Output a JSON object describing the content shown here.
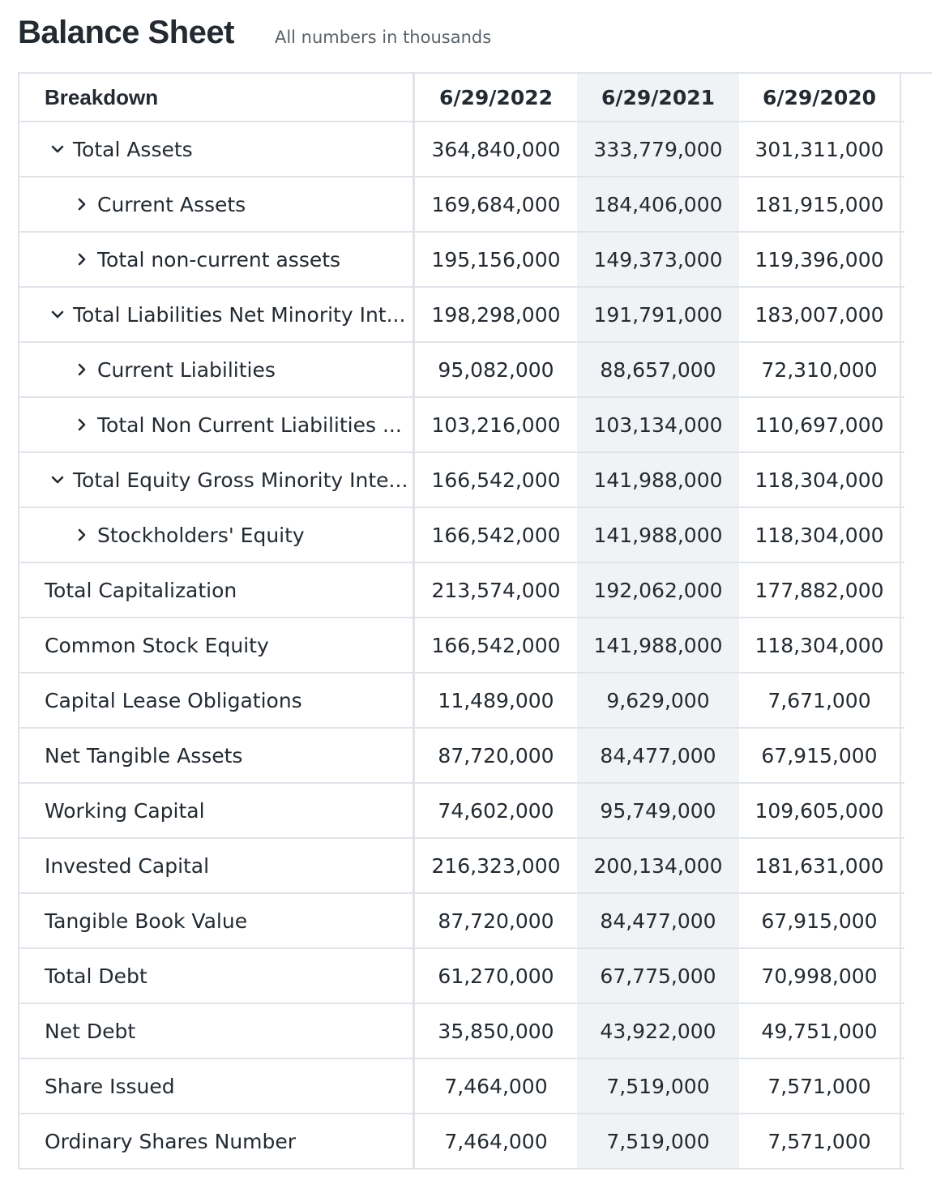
{
  "header": {
    "title": "Balance Sheet",
    "subtitle": "All numbers in thousands"
  },
  "table": {
    "columns": [
      "Breakdown",
      "6/29/2022",
      "6/29/2021",
      "6/29/2020"
    ],
    "rows": [
      {
        "label": "Total Assets",
        "level": 1,
        "toggle": "chevron-down-icon",
        "values": [
          "364,840,000",
          "333,779,000",
          "301,311,000"
        ]
      },
      {
        "label": "Current Assets",
        "level": 2,
        "toggle": "chevron-right-icon",
        "values": [
          "169,684,000",
          "184,406,000",
          "181,915,000"
        ]
      },
      {
        "label": "Total non-current assets",
        "level": 2,
        "toggle": "chevron-right-icon",
        "values": [
          "195,156,000",
          "149,373,000",
          "119,396,000"
        ]
      },
      {
        "label": "Total Liabilities Net Minority Int...",
        "level": 1,
        "toggle": "chevron-down-icon",
        "values": [
          "198,298,000",
          "191,791,000",
          "183,007,000"
        ]
      },
      {
        "label": "Current Liabilities",
        "level": 2,
        "toggle": "chevron-right-icon",
        "values": [
          "95,082,000",
          "88,657,000",
          "72,310,000"
        ]
      },
      {
        "label": "Total Non Current Liabilities ...",
        "level": 2,
        "toggle": "chevron-right-icon",
        "values": [
          "103,216,000",
          "103,134,000",
          "110,697,000"
        ]
      },
      {
        "label": "Total Equity Gross Minority Inte...",
        "level": 1,
        "toggle": "chevron-down-icon",
        "values": [
          "166,542,000",
          "141,988,000",
          "118,304,000"
        ]
      },
      {
        "label": "Stockholders' Equity",
        "level": 2,
        "toggle": "chevron-right-icon",
        "values": [
          "166,542,000",
          "141,988,000",
          "118,304,000"
        ]
      },
      {
        "label": "Total Capitalization",
        "level": 0,
        "toggle": null,
        "values": [
          "213,574,000",
          "192,062,000",
          "177,882,000"
        ]
      },
      {
        "label": "Common Stock Equity",
        "level": 0,
        "toggle": null,
        "values": [
          "166,542,000",
          "141,988,000",
          "118,304,000"
        ]
      },
      {
        "label": "Capital Lease Obligations",
        "level": 0,
        "toggle": null,
        "values": [
          "11,489,000",
          "9,629,000",
          "7,671,000"
        ]
      },
      {
        "label": "Net Tangible Assets",
        "level": 0,
        "toggle": null,
        "values": [
          "87,720,000",
          "84,477,000",
          "67,915,000"
        ]
      },
      {
        "label": "Working Capital",
        "level": 0,
        "toggle": null,
        "values": [
          "74,602,000",
          "95,749,000",
          "109,605,000"
        ]
      },
      {
        "label": "Invested Capital",
        "level": 0,
        "toggle": null,
        "values": [
          "216,323,000",
          "200,134,000",
          "181,631,000"
        ]
      },
      {
        "label": "Tangible Book Value",
        "level": 0,
        "toggle": null,
        "values": [
          "87,720,000",
          "84,477,000",
          "67,915,000"
        ]
      },
      {
        "label": "Total Debt",
        "level": 0,
        "toggle": null,
        "values": [
          "61,270,000",
          "67,775,000",
          "70,998,000"
        ]
      },
      {
        "label": "Net Debt",
        "level": 0,
        "toggle": null,
        "values": [
          "35,850,000",
          "43,922,000",
          "49,751,000"
        ]
      },
      {
        "label": "Share Issued",
        "level": 0,
        "toggle": null,
        "values": [
          "7,464,000",
          "7,519,000",
          "7,571,000"
        ]
      },
      {
        "label": "Ordinary Shares Number",
        "level": 0,
        "toggle": null,
        "values": [
          "7,464,000",
          "7,519,000",
          "7,571,000"
        ]
      }
    ]
  },
  "colors": {
    "text": "#232a31",
    "subtle_text": "#5b636a",
    "border": "#e0e4e9",
    "highlight_column": "#f0f3f5"
  }
}
